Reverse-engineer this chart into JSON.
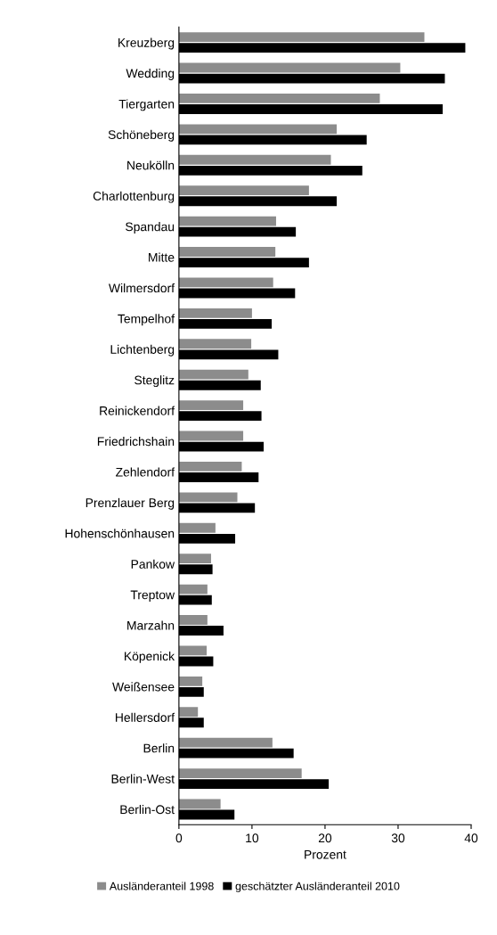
{
  "chart_data": {
    "type": "bar",
    "orientation": "horizontal",
    "xlabel": "Prozent",
    "categories": [
      "Kreuzberg",
      "Wedding",
      "Tiergarten",
      "Schöneberg",
      "Neukölln",
      "Charlottenburg",
      "Spandau",
      "Mitte",
      "Wilmersdorf",
      "Tempelhof",
      "Lichtenberg",
      "Steglitz",
      "Reinickendorf",
      "Friedrichshain",
      "Zehlendorf",
      "Prenzlauer Berg",
      "Hohenschönhausen",
      "Pankow",
      "Treptow",
      "Marzahn",
      "Köpenick",
      "Weißensee",
      "Hellersdorf",
      "Berlin",
      "Berlin-West",
      "Berlin-Ost"
    ],
    "series": [
      {
        "name": "Ausländeranteil 1998",
        "color": "#8c8c8c",
        "values": [
          33.6,
          30.3,
          27.5,
          21.6,
          20.8,
          17.8,
          13.3,
          13.2,
          12.9,
          10.0,
          9.9,
          9.5,
          8.8,
          8.8,
          8.6,
          8.0,
          5.0,
          4.4,
          3.9,
          3.9,
          3.8,
          3.2,
          2.6,
          12.8,
          16.8,
          5.7
        ]
      },
      {
        "name": "geschätzter Ausländeranteil 2010",
        "color": "#000000",
        "values": [
          39.2,
          36.4,
          36.1,
          25.7,
          25.1,
          21.6,
          16.0,
          17.8,
          15.9,
          12.7,
          13.6,
          11.2,
          11.3,
          11.6,
          10.9,
          10.4,
          7.7,
          4.6,
          4.5,
          6.1,
          4.7,
          3.4,
          3.4,
          15.7,
          20.5,
          7.6
        ]
      }
    ],
    "xlim": [
      0,
      40
    ],
    "xticks": [
      0,
      10,
      20,
      30,
      40
    ],
    "grid": false,
    "legend": "bottom"
  }
}
